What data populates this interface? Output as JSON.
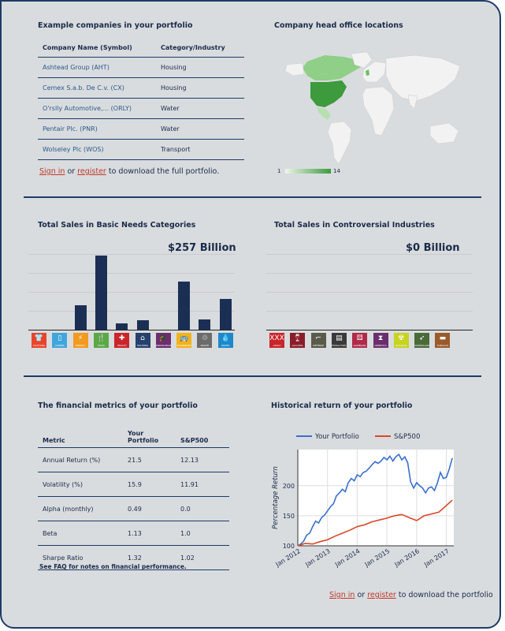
{
  "companies": {
    "title": "Example companies in your portfolio",
    "headers": [
      "Company Name (Symbol)",
      "Category/Industry"
    ],
    "rows": [
      {
        "name": "Ashtead Group (AHT)",
        "category": "Housing"
      },
      {
        "name": "Cemex S.a.b. De C.v. (CX)",
        "category": "Housing"
      },
      {
        "name": "O'rslly Automotive,... (ORLY)",
        "category": "Water"
      },
      {
        "name": "Pentair Plc. (PNR)",
        "category": "Water"
      },
      {
        "name": "Wolseley Plc (WOS)",
        "category": "Transport"
      }
    ],
    "signin": {
      "sign_in": "Sign in",
      "or": "or",
      "register": "register",
      "suffix": "to download the full portfolio."
    }
  },
  "map": {
    "title": "Company head office locations",
    "legend_min": "1",
    "legend_max": "14",
    "colors": {
      "low": "#d5ead0",
      "high": "#3d9a3d",
      "none": "#f2f2f2"
    }
  },
  "basic_needs": {
    "title": "Total Sales in Basic Needs Categories",
    "total": "$257 Billion",
    "chart_data": {
      "type": "bar",
      "categories": [
        "CLOTHING",
        "COMMS",
        "ENERGY",
        "FOOD",
        "HEALTH",
        "HOUSING",
        "KNOWLEDGE & EDU",
        "TRANSPORT",
        "WASTE",
        "WATER"
      ],
      "values": [
        0,
        0,
        32,
        98,
        8,
        13,
        0,
        64,
        14,
        41
      ],
      "ylim": [
        0,
        100
      ],
      "colors": {
        "bar": "#1b2f55"
      },
      "icons": [
        {
          "name": "clothing-icon",
          "label": "CLOTHING",
          "glyph": "👕",
          "color": "#e8452c"
        },
        {
          "name": "comms-icon",
          "label": "COMMS",
          "glyph": "▯",
          "color": "#3fa6dc"
        },
        {
          "name": "energy-icon",
          "label": "ENERGY",
          "glyph": "⚡",
          "color": "#f29a1f"
        },
        {
          "name": "food-icon",
          "label": "FOOD",
          "glyph": "🍴",
          "color": "#5aa847"
        },
        {
          "name": "health-icon",
          "label": "HEALTH",
          "glyph": "✚",
          "color": "#c9252b"
        },
        {
          "name": "housing-icon",
          "label": "HOUSING",
          "glyph": "⌂",
          "color": "#26406e"
        },
        {
          "name": "education-icon",
          "label": "KNOWLEDGE & EDU",
          "glyph": "🎓",
          "color": "#6b2e6e"
        },
        {
          "name": "transport-icon",
          "label": "TRANSPORT",
          "glyph": "🚌",
          "color": "#f3b21a"
        },
        {
          "name": "waste-icon",
          "label": "WASTE",
          "glyph": "♲",
          "color": "#6b6b6b"
        },
        {
          "name": "water-icon",
          "label": "WATER",
          "glyph": "💧",
          "color": "#1e88c8"
        }
      ]
    }
  },
  "controversial": {
    "title": "Total Sales in Controversial Industries",
    "total": "$0 Billion",
    "chart_data": {
      "type": "bar",
      "categories": [
        "ADULT",
        "ALCOHOL",
        "DEFENSE",
        "FOSSIL FUEL",
        "GAMBLING",
        "GENETICS",
        "NUCLEAR",
        "SURVEILLANCE",
        "TOBACCO"
      ],
      "values": [
        0,
        0,
        0,
        0,
        0,
        0,
        0,
        0,
        0
      ],
      "icons": [
        {
          "name": "adult-icon",
          "label": "ADULT",
          "glyph": "XXX",
          "color": "#c9252b"
        },
        {
          "name": "alcohol-icon",
          "label": "ALCOHOL",
          "glyph": "🍷",
          "color": "#8a1d2a"
        },
        {
          "name": "defense-icon",
          "label": "DEFENSE",
          "glyph": "⌐",
          "color": "#5a5a4a"
        },
        {
          "name": "fossil-fuel-icon",
          "label": "FOSSIL FUEL",
          "glyph": "▤",
          "color": "#3a3a3a"
        },
        {
          "name": "gambling-icon",
          "label": "GAMBLING",
          "glyph": "⚄",
          "color": "#b02a4a"
        },
        {
          "name": "genetics-icon",
          "label": "GENETICS",
          "glyph": "⧗",
          "color": "#6b2e6e"
        },
        {
          "name": "nuclear-icon",
          "label": "NUCLEAR",
          "glyph": "☢",
          "color": "#c6d322"
        },
        {
          "name": "surveillance-icon",
          "label": "SURVEILLANCE",
          "glyph": "➶",
          "color": "#4a6a3a"
        },
        {
          "name": "tobacco-icon",
          "label": "TOBACCO",
          "glyph": "▬",
          "color": "#9a5a2a"
        }
      ]
    }
  },
  "metrics": {
    "title": "The financial metrics of your portfolio",
    "headers": [
      "Metric",
      "Your\nPortfolio",
      "S&P500"
    ],
    "header_metric": "Metric",
    "header_portfolio_1": "Your",
    "header_portfolio_2": "Portfolio",
    "header_sp": "S&P500",
    "rows": [
      {
        "metric": "Annual Return (%)",
        "portfolio": "21.5",
        "sp": "12.13"
      },
      {
        "metric": "Volatility (%)",
        "portfolio": "15.9",
        "sp": "11.91"
      },
      {
        "metric": "Alpha (monthly)",
        "portfolio": "0.49",
        "sp": "0.0"
      },
      {
        "metric": "Beta",
        "portfolio": "1.13",
        "sp": "1.0"
      },
      {
        "metric": "Sharpe Ratio",
        "portfolio": "1.32",
        "sp": "1.02"
      }
    ],
    "note_prefix": "See",
    "note_link": "FAQ",
    "note_suffix": "for notes on financial performance."
  },
  "history": {
    "title": "Historical return of your portfolio",
    "signin": {
      "sign_in": "Sign in",
      "or": "or",
      "register": "register",
      "suffix": "to download the portfolio"
    },
    "chart_data": {
      "type": "line",
      "ylabel": "Percentage Return",
      "yticks": [
        100,
        150,
        200
      ],
      "ylim": [
        100,
        260
      ],
      "xticks": [
        "Jan 2012",
        "Jan 2013",
        "Jan 2014",
        "Jan 2015",
        "Jan 2016",
        "Jan 2017"
      ],
      "xlim": [
        2012,
        2017.25
      ],
      "grid": true,
      "legend": "top",
      "series": [
        {
          "name": "Your Portfolio",
          "color": "#3a6fd0",
          "x": [
            2012.0,
            2012.1,
            2012.2,
            2012.3,
            2012.4,
            2012.5,
            2012.6,
            2012.7,
            2012.8,
            2012.9,
            2013.0,
            2013.1,
            2013.2,
            2013.3,
            2013.4,
            2013.5,
            2013.6,
            2013.7,
            2013.8,
            2013.9,
            2014.0,
            2014.1,
            2014.2,
            2014.3,
            2014.4,
            2014.5,
            2014.6,
            2014.7,
            2014.8,
            2014.9,
            2015.0,
            2015.1,
            2015.2,
            2015.3,
            2015.4,
            2015.5,
            2015.6,
            2015.7,
            2015.8,
            2015.9,
            2016.0,
            2016.1,
            2016.2,
            2016.3,
            2016.4,
            2016.5,
            2016.6,
            2016.7,
            2016.8,
            2016.9,
            2017.0,
            2017.1,
            2017.2
          ],
          "y": [
            100,
            103,
            108,
            118,
            121,
            132,
            141,
            138,
            147,
            151,
            158,
            165,
            170,
            183,
            188,
            194,
            190,
            205,
            212,
            208,
            218,
            215,
            222,
            224,
            229,
            235,
            240,
            237,
            241,
            247,
            243,
            249,
            241,
            248,
            252,
            243,
            248,
            238,
            206,
            196,
            205,
            200,
            196,
            188,
            196,
            198,
            192,
            205,
            222,
            212,
            214,
            228,
            246
          ]
        },
        {
          "name": "S&P500",
          "color": "#d9472b",
          "x": [
            2012.0,
            2012.25,
            2012.5,
            2012.75,
            2013.0,
            2013.25,
            2013.5,
            2013.75,
            2014.0,
            2014.25,
            2014.5,
            2014.75,
            2015.0,
            2015.25,
            2015.5,
            2015.75,
            2016.0,
            2016.25,
            2016.5,
            2016.75,
            2017.0,
            2017.2
          ],
          "y": [
            100,
            104,
            103,
            107,
            110,
            116,
            121,
            126,
            132,
            135,
            140,
            143,
            146,
            150,
            152,
            147,
            142,
            150,
            153,
            156,
            167,
            176
          ]
        }
      ]
    }
  }
}
